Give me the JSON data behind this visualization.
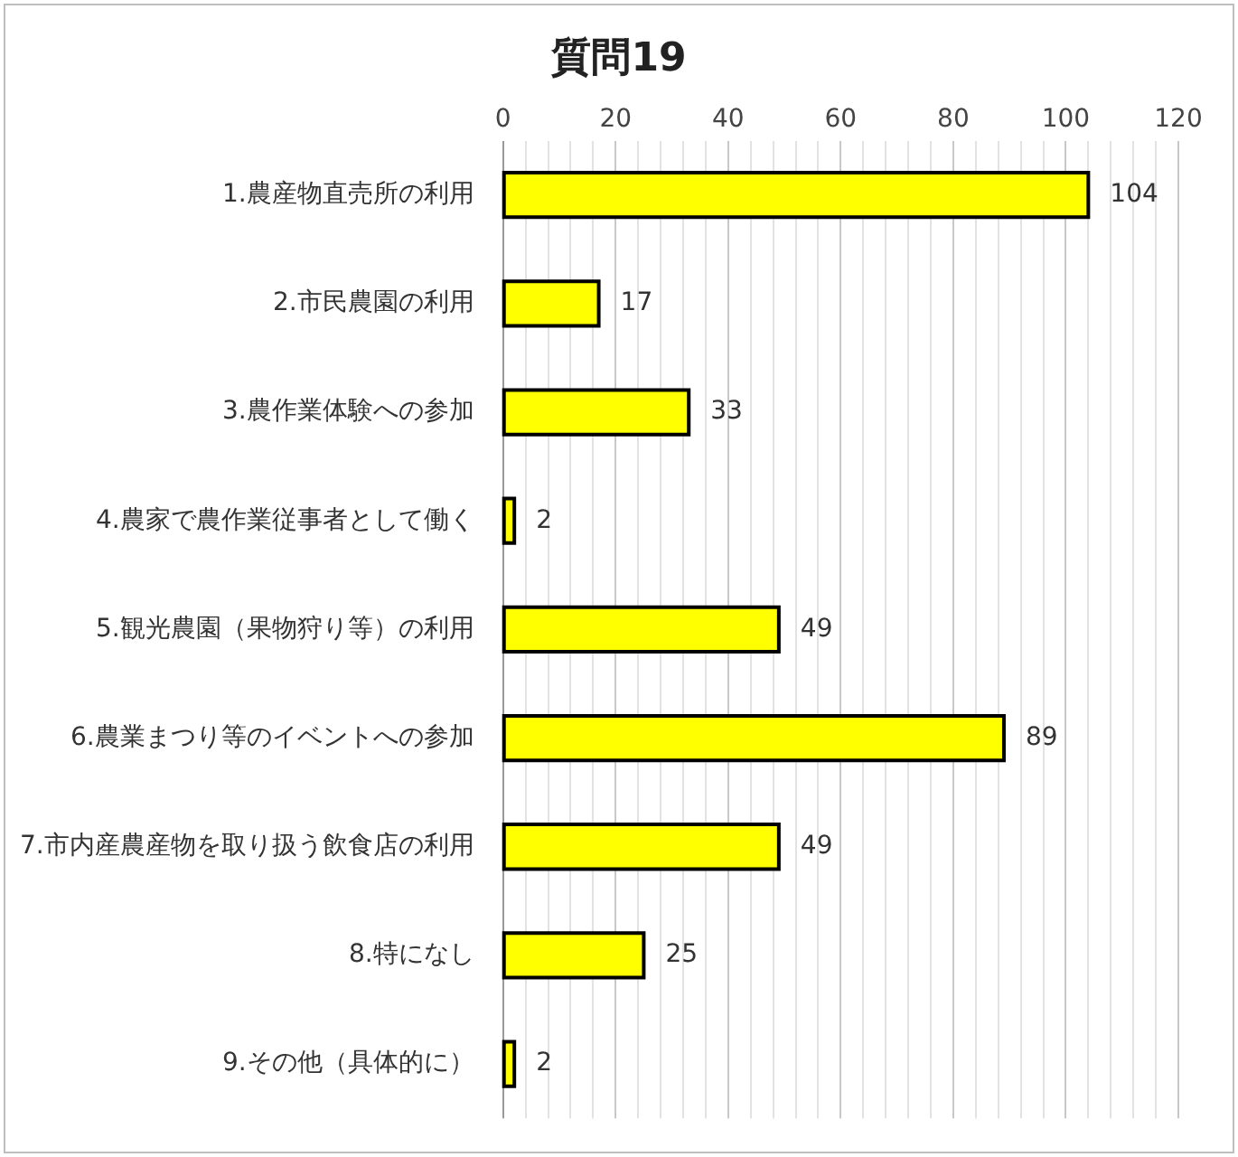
{
  "chart_data": {
    "type": "bar",
    "orientation": "horizontal",
    "title": "質問19",
    "categories": [
      "1.農産物直売所の利用",
      "2.市民農園の利用",
      "3.農作業体験への参加",
      "4.農家で農作業従事者として働く",
      "5.観光農園（果物狩り等）の利用",
      "6.農業まつり等のイベントへの参加",
      "7.市内産農産物を取り扱う飲食店の利用",
      "8.特になし",
      "9.その他（具体的に）"
    ],
    "values": [
      104,
      17,
      33,
      2,
      49,
      89,
      49,
      25,
      2
    ],
    "color": "#ffff00",
    "xlim": [
      0,
      120
    ],
    "xticks": [
      0,
      {
        "value": 4,
        "label": null
      },
      {
        "value": 8,
        "label": null
      },
      {
        "value": 12,
        "label": null
      },
      {
        "value": 16,
        "label": null
      },
      20,
      {
        "value": 24,
        "label": null
      },
      {
        "value": 28,
        "label": null
      },
      {
        "value": 32,
        "label": null
      },
      {
        "value": 36,
        "label": null
      },
      40,
      {
        "value": 44,
        "label": null
      },
      {
        "value": 48,
        "label": null
      },
      {
        "value": 52,
        "label": null
      },
      {
        "value": 56,
        "label": null
      },
      60,
      {
        "value": 64,
        "label": null
      },
      {
        "value": 68,
        "label": null
      },
      {
        "value": 72,
        "label": null
      },
      {
        "value": 76,
        "label": null
      },
      80,
      {
        "value": 84,
        "label": null
      },
      {
        "value": 88,
        "label": null
      },
      {
        "value": 92,
        "label": null
      },
      {
        "value": 96,
        "label": null
      },
      100,
      {
        "value": 104,
        "label": null
      },
      {
        "value": 108,
        "label": null
      },
      {
        "value": 112,
        "label": null
      },
      {
        "value": 116,
        "label": null
      },
      120
    ],
    "grid": "x",
    "data_labels": true,
    "legend": false
  }
}
